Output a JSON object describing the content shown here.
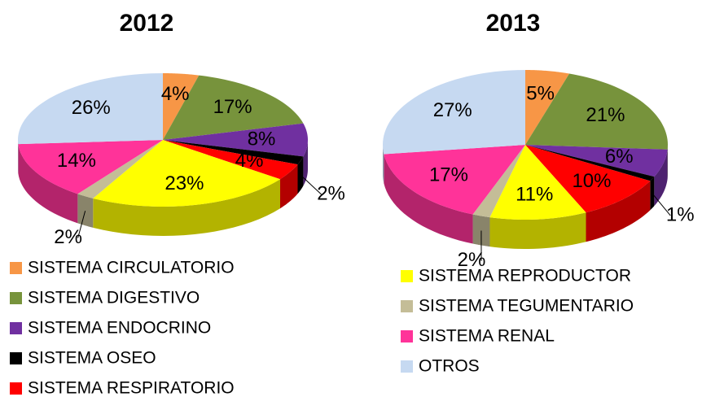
{
  "chart_data": [
    {
      "type": "pie3d",
      "title": "2012",
      "categories": [
        "SISTEMA CIRCULATORIO",
        "SISTEMA DIGESTIVO",
        "SISTEMA ENDOCRINO",
        "SISTEMA OSEO",
        "SISTEMA RESPIRATORIO",
        "SISTEMA REPRODUCTOR",
        "SISTEMA TEGUMENTARIO",
        "SISTEMA RENAL",
        "OTROS"
      ],
      "values": [
        4,
        17,
        8,
        2,
        4,
        23,
        2,
        14,
        26
      ],
      "value_labels": [
        "4%",
        "17%",
        "8%",
        "2%",
        "4%",
        "23%",
        "2%",
        "14%",
        "26%"
      ],
      "colors": [
        "#f79646",
        "#77933c",
        "#7030a0",
        "#000000",
        "#ff0000",
        "#ffff00",
        "#c4bd97",
        "#ff3399",
        "#c6d9f1"
      ]
    },
    {
      "type": "pie3d",
      "title": "2013",
      "categories": [
        "SISTEMA CIRCULATORIO",
        "SISTEMA DIGESTIVO",
        "SISTEMA ENDOCRINO",
        "SISTEMA OSEO",
        "SISTEMA RESPIRATORIO",
        "SISTEMA REPRODUCTOR",
        "SISTEMA TEGUMENTARIO",
        "SISTEMA RENAL",
        "OTROS"
      ],
      "values": [
        5,
        21,
        6,
        1,
        10,
        11,
        2,
        17,
        27
      ],
      "value_labels": [
        "5%",
        "21%",
        "6%",
        "1%",
        "10%",
        "11%",
        "2%",
        "17%",
        "27%"
      ],
      "colors": [
        "#f79646",
        "#77933c",
        "#7030a0",
        "#000000",
        "#ff0000",
        "#ffff00",
        "#c4bd97",
        "#ff3399",
        "#c6d9f1"
      ]
    }
  ]
}
